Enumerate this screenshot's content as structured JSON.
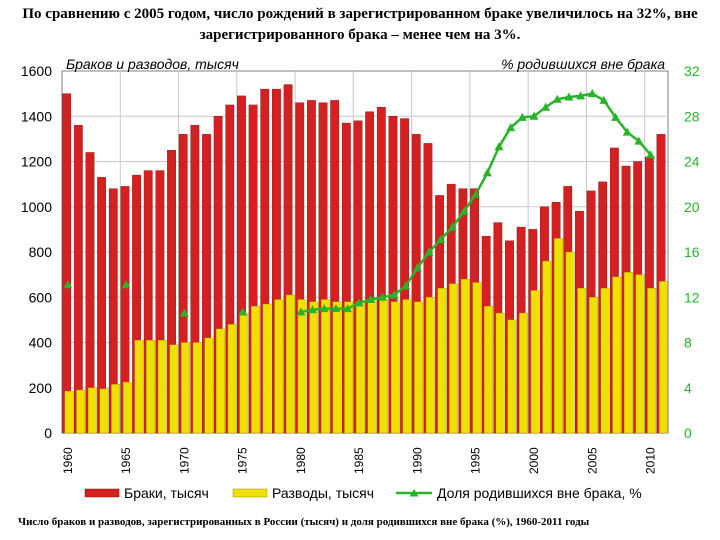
{
  "slide": {
    "title": "По сравнению с 2005 годом, число рождений в зарегистрированном браке увеличилось на 32%, вне зарегистрированного брака – менее чем на 3%.",
    "caption": "Число браков и разводов, зарегистрированных в России (тысяч) и доля родившихся вне брака (%), 1960-2011 годы"
  },
  "chart_data": {
    "type": "bar",
    "left_axis_title": "Браков и разводов, тысяч",
    "right_axis_title": "% родившихся вне брака",
    "x": [
      1960,
      1961,
      1962,
      1963,
      1964,
      1965,
      1966,
      1967,
      1968,
      1969,
      1970,
      1971,
      1972,
      1973,
      1974,
      1975,
      1976,
      1977,
      1978,
      1979,
      1980,
      1981,
      1982,
      1983,
      1984,
      1985,
      1986,
      1987,
      1988,
      1989,
      1990,
      1991,
      1992,
      1993,
      1994,
      1995,
      1996,
      1997,
      1998,
      1999,
      2000,
      2001,
      2002,
      2003,
      2004,
      2005,
      2006,
      2007,
      2008,
      2009,
      2010,
      2011
    ],
    "x_tick_labels": [
      "1960",
      "1965",
      "1970",
      "1975",
      "1980",
      "1985",
      "1990",
      "1995",
      "2000",
      "2005",
      "2010"
    ],
    "y_left_ticks": [
      0,
      200,
      400,
      600,
      800,
      1000,
      1200,
      1400,
      1600
    ],
    "y_right_ticks": [
      0,
      4,
      8,
      12,
      16,
      20,
      24,
      28,
      32
    ],
    "ylim_left": [
      0,
      1600
    ],
    "ylim_right": [
      0,
      32
    ],
    "grid": true,
    "legend_position": "bottom",
    "series": [
      {
        "name": "Браки, тысяч",
        "type": "bar",
        "axis": "left",
        "color": "#d42020",
        "values": [
          1500,
          1360,
          1240,
          1130,
          1080,
          1090,
          1140,
          1160,
          1160,
          1250,
          1320,
          1360,
          1320,
          1400,
          1450,
          1490,
          1450,
          1520,
          1520,
          1540,
          1460,
          1470,
          1460,
          1470,
          1370,
          1380,
          1420,
          1440,
          1400,
          1390,
          1320,
          1280,
          1050,
          1100,
          1080,
          1080,
          870,
          930,
          850,
          910,
          900,
          1000,
          1020,
          1090,
          980,
          1070,
          1110,
          1260,
          1180,
          1200,
          1220,
          1320
        ]
      },
      {
        "name": "Разводы, тысяч",
        "type": "bar",
        "axis": "left",
        "color": "#f0e000",
        "values": [
          185,
          190,
          200,
          195,
          215,
          225,
          410,
          410,
          410,
          390,
          400,
          400,
          420,
          460,
          480,
          530,
          560,
          570,
          590,
          610,
          590,
          580,
          590,
          580,
          580,
          580,
          590,
          590,
          580,
          590,
          580,
          600,
          640,
          660,
          680,
          665,
          560,
          530,
          500,
          530,
          630,
          760,
          860,
          800,
          640,
          600,
          640,
          690,
          710,
          700,
          640,
          670
        ]
      },
      {
        "name": "Доля родившихся вне брака, %",
        "type": "line",
        "axis": "right",
        "color": "#28b428",
        "points": [
          [
            1960,
            13.1
          ],
          [
            1965,
            13.1
          ],
          [
            1970,
            10.6
          ],
          [
            1975,
            10.7
          ],
          [
            1980,
            10.7
          ],
          [
            1981,
            10.9
          ],
          [
            1982,
            11.0
          ],
          [
            1983,
            11.0
          ],
          [
            1984,
            11.0
          ],
          [
            1985,
            11.5
          ],
          [
            1986,
            11.8
          ],
          [
            1987,
            12.0
          ],
          [
            1988,
            12.2
          ],
          [
            1989,
            13.0
          ],
          [
            1990,
            14.6
          ],
          [
            1991,
            16.0
          ],
          [
            1992,
            17.1
          ],
          [
            1993,
            18.2
          ],
          [
            1994,
            19.6
          ],
          [
            1995,
            21.1
          ],
          [
            1996,
            23.0
          ],
          [
            1997,
            25.3
          ],
          [
            1998,
            27.0
          ],
          [
            1999,
            27.9
          ],
          [
            2000,
            28.0
          ],
          [
            2001,
            28.8
          ],
          [
            2002,
            29.5
          ],
          [
            2003,
            29.7
          ],
          [
            2004,
            29.8
          ],
          [
            2005,
            30.0
          ],
          [
            2006,
            29.4
          ],
          [
            2007,
            27.9
          ],
          [
            2008,
            26.6
          ],
          [
            2009,
            25.8
          ],
          [
            2010,
            24.6
          ]
        ]
      }
    ]
  }
}
